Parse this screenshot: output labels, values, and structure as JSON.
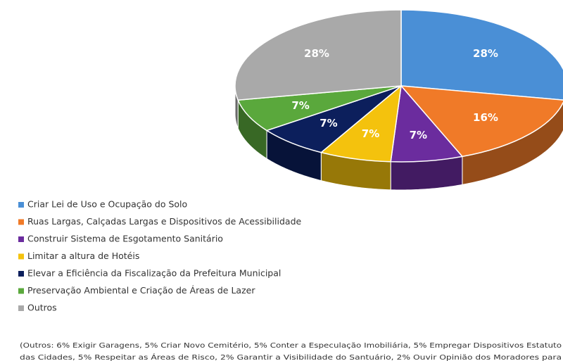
{
  "chart_data": {
    "type": "pie3d",
    "categories": [
      "Criar Lei de Uso e Ocupação do Solo",
      "Ruas Largas, Calçadas Largas e Dispositivos de Acessibilidade",
      "Construir Sistema de Esgotamento Sanitário",
      "Limitar a altura de Hotéis",
      "Elevar a Eficiência da Fiscalização da Prefeitura Municipal",
      "Preservação Ambiental e Criação de Áreas de Lazer",
      "Outros"
    ],
    "values": [
      28,
      16,
      7,
      7,
      7,
      7,
      28
    ],
    "value_labels": [
      "28%",
      "16%",
      "7%",
      "7%",
      "7%",
      "7%",
      "28%"
    ],
    "colors": [
      "#4a8fd6",
      "#f07a28",
      "#6b2c9e",
      "#f4c20d",
      "#0c1f5c",
      "#5aa83c",
      "#a9a9a9"
    ],
    "legend": "bottom-left",
    "note": [
      "(Outros: 6% Exigir Garagens, 5% Criar Novo Cemitério, 5% Conter a Especulação Imobiliária, 5% Empregar Dispositivos Estatuto",
      "das Cidades, 5% Respeitar as Áreas de Risco, 2% Garantir a Visibilidade do Santuário, 2% Ouvir Opinião dos Moradores para"
    ]
  }
}
